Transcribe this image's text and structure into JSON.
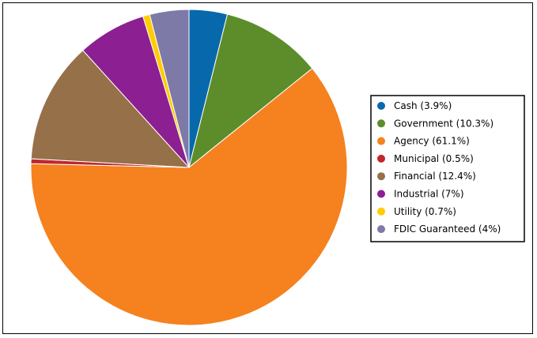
{
  "chart_data": {
    "type": "pie",
    "title": "",
    "legend_placement": "right",
    "slices": [
      {
        "name": "Cash",
        "value": 3.9,
        "label": "Cash (3.9%)",
        "color": "#0868ac"
      },
      {
        "name": "Government",
        "value": 10.3,
        "label": "Government (10.3%)",
        "color": "#5c8d2a"
      },
      {
        "name": "Agency",
        "value": 61.1,
        "label": "Agency (61.1%)",
        "color": "#f5811f"
      },
      {
        "name": "Municipal",
        "value": 0.5,
        "label": "Municipal (0.5%)",
        "color": "#c1272d"
      },
      {
        "name": "Financial",
        "value": 12.4,
        "label": "Financial (12.4%)",
        "color": "#967048"
      },
      {
        "name": "Industrial",
        "value": 7,
        "label": "Industrial (7%)",
        "color": "#8c1f91"
      },
      {
        "name": "Utility",
        "value": 0.7,
        "label": "Utility (0.7%)",
        "color": "#ffcc00"
      },
      {
        "name": "FDIC Guaranteed",
        "value": 4,
        "label": "FDIC Guaranteed (4%)",
        "color": "#7d7aa8"
      }
    ]
  }
}
